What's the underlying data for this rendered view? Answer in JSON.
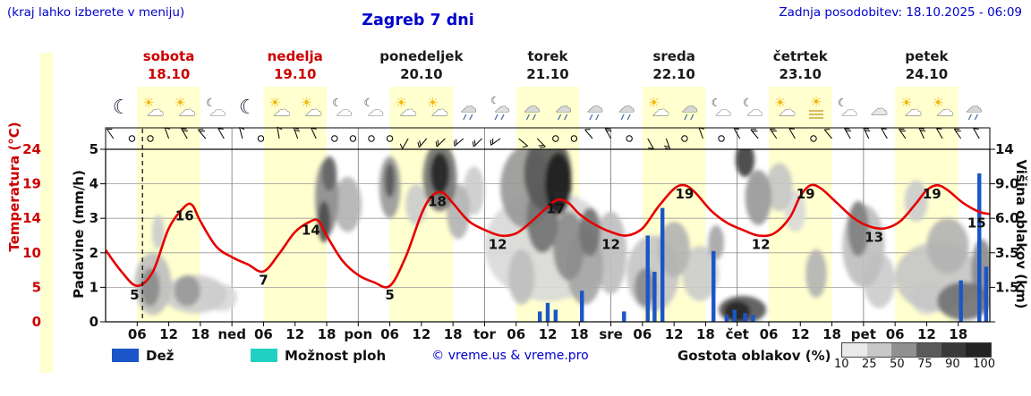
{
  "header": {
    "hint": "(kraj lahko izberete v meniju)",
    "title": "Zagreb 7 dni",
    "updated": "Zadnja posodobitev: 18.10.2025 - 06:09"
  },
  "axes": {
    "temp_label": "Temperatura (°C)",
    "precip_label": "Padavine (mm/h)",
    "cloud_label": "Višina oblakov (km)",
    "temp_ticks": [
      "24",
      "19",
      "14",
      "10",
      "5",
      "0"
    ],
    "precip_ticks": [
      "5",
      "4",
      "3",
      "2",
      "1",
      "0"
    ],
    "cloud_ticks": [
      "14",
      "9.0",
      "6.0",
      "3.5",
      "1.5"
    ]
  },
  "days": [
    {
      "name": "sobota",
      "date": "18.10",
      "color": "#cc0000"
    },
    {
      "name": "nedelja",
      "date": "19.10",
      "color": "#cc0000"
    },
    {
      "name": "ponedeljek",
      "date": "20.10",
      "color": "#1a1a1a"
    },
    {
      "name": "torek",
      "date": "21.10",
      "color": "#1a1a1a"
    },
    {
      "name": "sreda",
      "date": "22.10",
      "color": "#1a1a1a"
    },
    {
      "name": "četrtek",
      "date": "23.10",
      "color": "#1a1a1a"
    },
    {
      "name": "petek",
      "date": "24.10",
      "color": "#1a1a1a"
    }
  ],
  "legend": {
    "rain": "Dež",
    "showers": "Možnost ploh",
    "copyright": "© vreme.us & vreme.pro",
    "cloud_density": "Gostota oblakov (%)",
    "density_ticks": [
      "10",
      "25",
      "50",
      "75",
      "90",
      "100"
    ],
    "density_colors": [
      "#e9e9e9",
      "#c8c8c8",
      "#919191",
      "#5a5a5a",
      "#393939",
      "#232323"
    ]
  },
  "colors": {
    "accent_blue": "#0000cc",
    "weekend_red": "#cc0000",
    "temp_line": "#e60000",
    "rain_bar": "#1a56c8",
    "showers": "#1fd1c1",
    "day_band": "#ffffcf",
    "grid": "#999999"
  },
  "chart_data": {
    "type": "meteogram",
    "hours_span": 168,
    "temp_axis_range": [
      0,
      24
    ],
    "precip_axis_range": [
      0,
      5
    ],
    "cloud_axis_km_ticks": [
      1.5,
      3.5,
      6.0,
      9.0,
      14
    ],
    "day_bands_h": [
      [
        6,
        18
      ],
      [
        30,
        42
      ],
      [
        54,
        66
      ],
      [
        78,
        90
      ],
      [
        102,
        114
      ],
      [
        126,
        138
      ],
      [
        150,
        162
      ]
    ],
    "now_line_h": 7,
    "temp_c_points": [
      [
        0,
        10
      ],
      [
        3,
        7
      ],
      [
        6,
        5
      ],
      [
        9,
        7
      ],
      [
        12,
        13
      ],
      [
        15,
        16
      ],
      [
        16.5,
        16.2
      ],
      [
        18,
        14
      ],
      [
        21,
        10.5
      ],
      [
        24,
        9
      ],
      [
        27,
        8
      ],
      [
        30,
        7
      ],
      [
        33,
        9.5
      ],
      [
        36,
        12.5
      ],
      [
        39,
        14
      ],
      [
        40.5,
        14
      ],
      [
        42,
        12
      ],
      [
        45,
        8.5
      ],
      [
        48,
        6.5
      ],
      [
        51,
        5.5
      ],
      [
        54,
        5
      ],
      [
        57,
        9
      ],
      [
        60,
        15
      ],
      [
        62,
        17.5
      ],
      [
        64,
        18
      ],
      [
        66,
        16.5
      ],
      [
        69,
        14
      ],
      [
        72,
        12.8
      ],
      [
        75,
        12
      ],
      [
        78,
        12.3
      ],
      [
        81,
        14
      ],
      [
        84,
        16
      ],
      [
        86,
        17
      ],
      [
        88,
        16.5
      ],
      [
        90,
        15
      ],
      [
        93,
        13.5
      ],
      [
        96,
        12.5
      ],
      [
        99,
        12
      ],
      [
        102,
        13
      ],
      [
        105,
        16
      ],
      [
        108,
        18.5
      ],
      [
        110,
        19
      ],
      [
        112,
        18
      ],
      [
        115,
        15.5
      ],
      [
        118,
        13.8
      ],
      [
        121,
        12.8
      ],
      [
        124,
        12
      ],
      [
        127,
        12.3
      ],
      [
        130,
        14.5
      ],
      [
        132,
        17.5
      ],
      [
        134,
        19
      ],
      [
        136,
        18.5
      ],
      [
        139,
        16.5
      ],
      [
        142,
        14.5
      ],
      [
        145,
        13.3
      ],
      [
        148,
        13
      ],
      [
        151,
        14
      ],
      [
        154,
        16.5
      ],
      [
        156,
        18.3
      ],
      [
        158,
        19
      ],
      [
        160,
        18.3
      ],
      [
        163,
        16.5
      ],
      [
        166,
        15.3
      ],
      [
        168,
        15
      ]
    ],
    "temp_labels": [
      [
        5.5,
        5
      ],
      [
        15,
        16
      ],
      [
        30,
        7
      ],
      [
        39,
        14
      ],
      [
        54,
        5
      ],
      [
        63,
        18
      ],
      [
        74.5,
        12
      ],
      [
        85.5,
        17
      ],
      [
        96,
        12
      ],
      [
        110,
        19
      ],
      [
        124.5,
        12
      ],
      [
        133,
        19
      ],
      [
        146,
        13
      ],
      [
        157,
        19
      ],
      [
        165.5,
        15
      ]
    ],
    "precip_bars_mmh": [
      [
        82.5,
        0.3
      ],
      [
        84,
        0.55
      ],
      [
        85.5,
        0.35
      ],
      [
        90.5,
        0.9
      ],
      [
        98.5,
        0.3
      ],
      [
        103,
        2.5
      ],
      [
        104.3,
        1.45
      ],
      [
        105.8,
        3.3
      ],
      [
        115.5,
        2.05
      ],
      [
        118,
        0.2
      ],
      [
        119.5,
        0.35
      ],
      [
        121.5,
        0.25
      ],
      [
        123,
        0.2
      ],
      [
        162.5,
        1.2
      ],
      [
        166,
        4.3
      ],
      [
        167.3,
        1.6
      ]
    ],
    "x_ticks": [
      {
        "t": 6,
        "label": "06"
      },
      {
        "t": 12,
        "label": "12"
      },
      {
        "t": 18,
        "label": "18"
      },
      {
        "t": 24,
        "label": "ned"
      },
      {
        "t": 30,
        "label": "06"
      },
      {
        "t": 36,
        "label": "12"
      },
      {
        "t": 42,
        "label": "18"
      },
      {
        "t": 48,
        "label": "pon"
      },
      {
        "t": 54,
        "label": "06"
      },
      {
        "t": 60,
        "label": "12"
      },
      {
        "t": 66,
        "label": "18"
      },
      {
        "t": 72,
        "label": "tor"
      },
      {
        "t": 78,
        "label": "06"
      },
      {
        "t": 84,
        "label": "12"
      },
      {
        "t": 90,
        "label": "18"
      },
      {
        "t": 96,
        "label": "sre"
      },
      {
        "t": 102,
        "label": "06"
      },
      {
        "t": 108,
        "label": "12"
      },
      {
        "t": 114,
        "label": "18"
      },
      {
        "t": 120,
        "label": "čet"
      },
      {
        "t": 126,
        "label": "06"
      },
      {
        "t": 132,
        "label": "12"
      },
      {
        "t": 138,
        "label": "18"
      },
      {
        "t": 144,
        "label": "pet"
      },
      {
        "t": 150,
        "label": "06"
      },
      {
        "t": 156,
        "label": "12"
      },
      {
        "t": 162,
        "label": "18"
      }
    ],
    "cloud_blobs": [
      {
        "t": 9,
        "u": 1.1,
        "rt": 3.5,
        "ru": 0.9,
        "c": "#bfbfbf"
      },
      {
        "t": 8.5,
        "u": 1.0,
        "rt": 1.8,
        "ru": 0.55,
        "c": "#8c8c8c"
      },
      {
        "t": 10,
        "u": 2.6,
        "rt": 1.2,
        "ru": 0.5,
        "c": "#cccccc"
      },
      {
        "t": 17,
        "u": 0.8,
        "rt": 6,
        "ru": 0.55,
        "c": "#cccccc"
      },
      {
        "t": 15.5,
        "u": 0.9,
        "rt": 2.5,
        "ru": 0.45,
        "c": "#999999"
      },
      {
        "t": 22,
        "u": 0.7,
        "rt": 3,
        "ru": 0.4,
        "c": "#d9d9d9"
      },
      {
        "t": 42,
        "u": 3.6,
        "rt": 2.2,
        "ru": 1.1,
        "c": "#8c8c8c"
      },
      {
        "t": 42.5,
        "u": 4.3,
        "rt": 1.4,
        "ru": 0.5,
        "c": "#666666"
      },
      {
        "t": 41.5,
        "u": 2.9,
        "rt": 1.2,
        "ru": 0.6,
        "c": "#4d4d4d"
      },
      {
        "t": 46,
        "u": 3.4,
        "rt": 2.6,
        "ru": 0.8,
        "c": "#b3b3b3"
      },
      {
        "t": 54,
        "u": 3.9,
        "rt": 2,
        "ru": 0.9,
        "c": "#999999"
      },
      {
        "t": 54,
        "u": 4.1,
        "rt": 1,
        "ru": 0.5,
        "c": "#595959"
      },
      {
        "t": 59,
        "u": 3.4,
        "rt": 2,
        "ru": 0.6,
        "c": "#cccccc"
      },
      {
        "t": 63.5,
        "u": 4.2,
        "rt": 3.2,
        "ru": 1.0,
        "c": "#737373"
      },
      {
        "t": 63.5,
        "u": 4.3,
        "rt": 1.8,
        "ru": 0.6,
        "c": "#262626"
      },
      {
        "t": 67,
        "u": 3.2,
        "rt": 2.2,
        "ru": 0.8,
        "c": "#b3b3b3"
      },
      {
        "t": 70,
        "u": 3.8,
        "rt": 2,
        "ru": 0.7,
        "c": "#cccccc"
      },
      {
        "t": 84,
        "u": 2.2,
        "rt": 12,
        "ru": 1.6,
        "c": "#d9d9d9"
      },
      {
        "t": 80,
        "u": 3.9,
        "rt": 5,
        "ru": 1.2,
        "c": "#999999"
      },
      {
        "t": 84,
        "u": 4.3,
        "rt": 4.5,
        "ru": 1.1,
        "c": "#595959"
      },
      {
        "t": 86,
        "u": 4.0,
        "rt": 2.5,
        "ru": 0.9,
        "c": "#1f1f1f"
      },
      {
        "t": 83,
        "u": 3.0,
        "rt": 3,
        "ru": 1.0,
        "c": "#737373"
      },
      {
        "t": 88,
        "u": 2.2,
        "rt": 3,
        "ru": 1.0,
        "c": "#8c8c8c"
      },
      {
        "t": 91,
        "u": 1.6,
        "rt": 3.5,
        "ru": 1.1,
        "c": "#a6a6a6"
      },
      {
        "t": 92,
        "u": 2.6,
        "rt": 2,
        "ru": 0.7,
        "c": "#737373"
      },
      {
        "t": 96,
        "u": 2.0,
        "rt": 3,
        "ru": 1.2,
        "c": "#bfbfbf"
      },
      {
        "t": 79,
        "u": 1.3,
        "rt": 2.5,
        "ru": 0.8,
        "c": "#bfbfbf"
      },
      {
        "t": 104,
        "u": 1.4,
        "rt": 5,
        "ru": 1.1,
        "c": "#c6c6c6"
      },
      {
        "t": 102.5,
        "u": 1.0,
        "rt": 2,
        "ru": 0.55,
        "c": "#8c8c8c"
      },
      {
        "t": 108,
        "u": 2.1,
        "rt": 3,
        "ru": 0.8,
        "c": "#b3b3b3"
      },
      {
        "t": 113,
        "u": 1.4,
        "rt": 3.5,
        "ru": 0.8,
        "c": "#cccccc"
      },
      {
        "t": 116,
        "u": 2.3,
        "rt": 1.5,
        "ru": 0.5,
        "c": "#a6a6a6"
      },
      {
        "t": 121,
        "u": 0.35,
        "rt": 4.5,
        "ru": 0.4,
        "c": "#595959"
      },
      {
        "t": 120,
        "u": 0.3,
        "rt": 2.5,
        "ru": 0.3,
        "c": "#262626"
      },
      {
        "t": 121.5,
        "u": 4.7,
        "rt": 1.8,
        "ru": 0.5,
        "c": "#404040"
      },
      {
        "t": 124,
        "u": 3.6,
        "rt": 2.5,
        "ru": 0.8,
        "c": "#999999"
      },
      {
        "t": 128,
        "u": 3.9,
        "rt": 2.5,
        "ru": 0.7,
        "c": "#c6c6c6"
      },
      {
        "t": 131,
        "u": 3.2,
        "rt": 2,
        "ru": 0.6,
        "c": "#d9d9d9"
      },
      {
        "t": 135,
        "u": 1.4,
        "rt": 2,
        "ru": 0.7,
        "c": "#b3b3b3"
      },
      {
        "t": 144,
        "u": 2.2,
        "rt": 4,
        "ru": 1.2,
        "c": "#bfbfbf"
      },
      {
        "t": 143,
        "u": 2.7,
        "rt": 2,
        "ru": 0.8,
        "c": "#808080"
      },
      {
        "t": 147,
        "u": 1.2,
        "rt": 3,
        "ru": 0.8,
        "c": "#cccccc"
      },
      {
        "t": 154,
        "u": 3.5,
        "rt": 2.2,
        "ru": 0.6,
        "c": "#cccccc"
      },
      {
        "t": 158,
        "u": 1.3,
        "rt": 8,
        "ru": 1.0,
        "c": "#c6c6c6"
      },
      {
        "t": 160,
        "u": 2.2,
        "rt": 4,
        "ru": 0.8,
        "c": "#b3b3b3"
      },
      {
        "t": 163,
        "u": 0.6,
        "rt": 5,
        "ru": 0.55,
        "c": "#737373"
      },
      {
        "t": 166.5,
        "u": 1.5,
        "rt": 2,
        "ru": 0.9,
        "c": "#8c8c8c"
      },
      {
        "t": 156,
        "u": 0.7,
        "rt": 3,
        "ru": 0.5,
        "c": "#d9d9d9"
      }
    ],
    "icons": [
      {
        "t": 3,
        "type": "moon"
      },
      {
        "t": 9,
        "type": "sun-cloud"
      },
      {
        "t": 15,
        "type": "sun-cloud"
      },
      {
        "t": 21,
        "type": "cloud-moon"
      },
      {
        "t": 27,
        "type": "moon"
      },
      {
        "t": 33,
        "type": "sun-cloud"
      },
      {
        "t": 39,
        "type": "sun-cloud"
      },
      {
        "t": 45,
        "type": "cloud-moon"
      },
      {
        "t": 51,
        "type": "cloud-moon"
      },
      {
        "t": 57,
        "type": "sun-cloud"
      },
      {
        "t": 63,
        "type": "sun-cloud"
      },
      {
        "t": 69,
        "type": "cloud-rain"
      },
      {
        "t": 75,
        "type": "cloud-moon-rain"
      },
      {
        "t": 81,
        "type": "cloud-rain"
      },
      {
        "t": 87,
        "type": "cloud-rain"
      },
      {
        "t": 93,
        "type": "cloud-rain"
      },
      {
        "t": 99,
        "type": "cloud-rain"
      },
      {
        "t": 105,
        "type": "sun-cloud"
      },
      {
        "t": 111,
        "type": "cloud-rain"
      },
      {
        "t": 117,
        "type": "cloud-moon"
      },
      {
        "t": 123,
        "type": "cloud-moon"
      },
      {
        "t": 129,
        "type": "sun-cloud"
      },
      {
        "t": 135,
        "type": "sun-fog"
      },
      {
        "t": 141,
        "type": "cloud-moon"
      },
      {
        "t": 147,
        "type": "cloud"
      },
      {
        "t": 153,
        "type": "sun-cloud"
      },
      {
        "t": 159,
        "type": "sun-cloud"
      },
      {
        "t": 165,
        "type": "cloud-rain"
      }
    ],
    "wind": [
      {
        "t": 1.5,
        "type": "barb",
        "a": 235,
        "k": 1
      },
      {
        "t": 5,
        "type": "calm"
      },
      {
        "t": 8.5,
        "type": "calm"
      },
      {
        "t": 12,
        "type": "barb",
        "a": 250,
        "k": 1
      },
      {
        "t": 15.5,
        "type": "barb",
        "a": 240,
        "k": 2
      },
      {
        "t": 19,
        "type": "barb",
        "a": 230,
        "k": 2
      },
      {
        "t": 22.5,
        "type": "barb",
        "a": 240,
        "k": 1
      },
      {
        "t": 26,
        "type": "barb",
        "a": 255,
        "k": 1
      },
      {
        "t": 29.5,
        "type": "calm"
      },
      {
        "t": 33,
        "type": "barb",
        "a": 260,
        "k": 1
      },
      {
        "t": 36.5,
        "type": "barb",
        "a": 250,
        "k": 2
      },
      {
        "t": 40,
        "type": "barb",
        "a": 245,
        "k": 1
      },
      {
        "t": 43.5,
        "type": "calm"
      },
      {
        "t": 47,
        "type": "calm"
      },
      {
        "t": 50.5,
        "type": "calm"
      },
      {
        "t": 54,
        "type": "calm"
      },
      {
        "t": 57.5,
        "type": "barb",
        "a": 120,
        "k": 1
      },
      {
        "t": 61,
        "type": "barb",
        "a": 130,
        "k": 2
      },
      {
        "t": 64.5,
        "type": "barb",
        "a": 135,
        "k": 2
      },
      {
        "t": 68,
        "type": "barb",
        "a": 140,
        "k": 2
      },
      {
        "t": 71.5,
        "type": "barb",
        "a": 135,
        "k": 2
      },
      {
        "t": 75,
        "type": "barb",
        "a": 145,
        "k": 2
      },
      {
        "t": 78.5,
        "type": "barb",
        "a": 40,
        "k": 1
      },
      {
        "t": 82,
        "type": "barb",
        "a": 45,
        "k": 2
      },
      {
        "t": 85.5,
        "type": "calm"
      },
      {
        "t": 89,
        "type": "calm"
      },
      {
        "t": 92.5,
        "type": "barb",
        "a": 230,
        "k": 1
      },
      {
        "t": 96,
        "type": "barb",
        "a": 240,
        "k": 2
      },
      {
        "t": 99.5,
        "type": "calm"
      },
      {
        "t": 103,
        "type": "barb",
        "a": 60,
        "k": 1
      },
      {
        "t": 106.5,
        "type": "barb",
        "a": 70,
        "k": 2
      },
      {
        "t": 110,
        "type": "calm"
      },
      {
        "t": 113.5,
        "type": "barb",
        "a": 250,
        "k": 1
      },
      {
        "t": 117,
        "type": "calm"
      },
      {
        "t": 120.5,
        "type": "barb",
        "a": 240,
        "k": 1
      },
      {
        "t": 124,
        "type": "barb",
        "a": 230,
        "k": 2
      },
      {
        "t": 127.5,
        "type": "barb",
        "a": 235,
        "k": 2
      },
      {
        "t": 131,
        "type": "barb",
        "a": 240,
        "k": 1
      },
      {
        "t": 134.5,
        "type": "calm"
      },
      {
        "t": 138,
        "type": "barb",
        "a": 230,
        "k": 1
      },
      {
        "t": 141.5,
        "type": "barb",
        "a": 240,
        "k": 2
      },
      {
        "t": 145,
        "type": "barb",
        "a": 245,
        "k": 2
      },
      {
        "t": 148.5,
        "type": "barb",
        "a": 240,
        "k": 1
      },
      {
        "t": 152,
        "type": "barb",
        "a": 235,
        "k": 2
      },
      {
        "t": 155.5,
        "type": "barb",
        "a": 245,
        "k": 2
      },
      {
        "t": 159,
        "type": "barb",
        "a": 240,
        "k": 1
      },
      {
        "t": 162.5,
        "type": "barb",
        "a": 235,
        "k": 2
      },
      {
        "t": 166,
        "type": "barb",
        "a": 240,
        "k": 1
      }
    ]
  }
}
